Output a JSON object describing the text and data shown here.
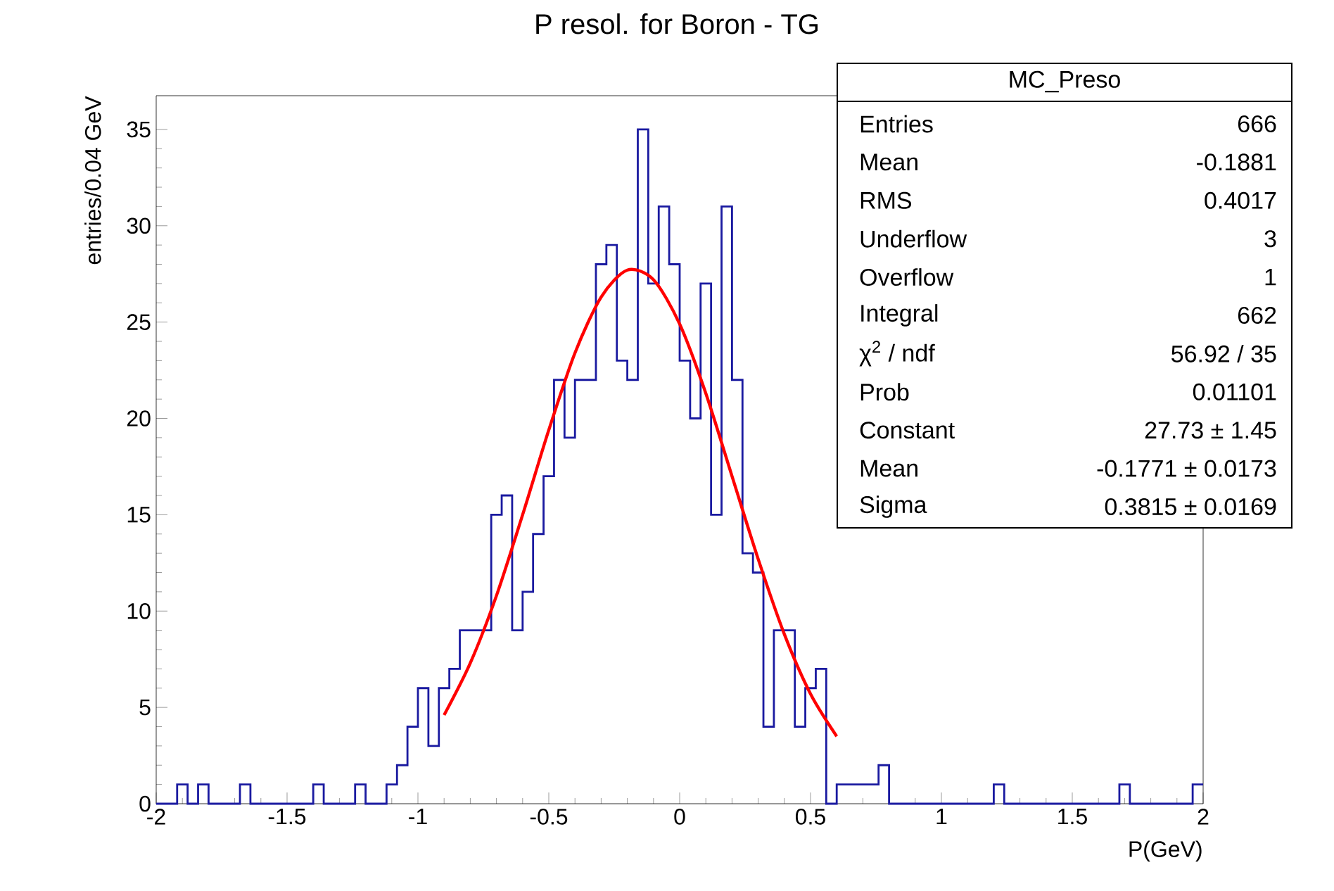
{
  "chart_data": {
    "type": "histogram",
    "title": "P resol. for Boron - TG",
    "xlabel": "P(GeV)",
    "ylabel": "entries/0.04 GeV",
    "bins": [
      -2,
      -1.96,
      -1.92,
      -1.88,
      -1.84,
      -1.8,
      -1.76,
      -1.72,
      -1.68,
      -1.64,
      -1.6,
      -1.56,
      -1.52,
      -1.48,
      -1.44,
      -1.4,
      -1.36,
      -1.32,
      -1.28,
      -1.24,
      -1.2,
      -1.16,
      -1.12,
      -1.08,
      -1.04,
      -1,
      -0.96,
      -0.92,
      -0.88,
      -0.84,
      -0.8,
      -0.76,
      -0.72,
      -0.68,
      -0.64,
      -0.6,
      -0.56,
      -0.52,
      -0.48,
      -0.44,
      -0.4,
      -0.36,
      -0.32,
      -0.28,
      -0.24,
      -0.2,
      -0.16,
      -0.12,
      -0.08,
      -0.04,
      0,
      0.04,
      0.08,
      0.12,
      0.16,
      0.2,
      0.24,
      0.28,
      0.32,
      0.36,
      0.4,
      0.44,
      0.48,
      0.52,
      0.56,
      0.6,
      0.64,
      0.68,
      0.72,
      0.76,
      0.8,
      0.84,
      0.88,
      0.92,
      0.96,
      1,
      1.04,
      1.08,
      1.12,
      1.16,
      1.2,
      1.24,
      1.28,
      1.32,
      1.36,
      1.4,
      1.44,
      1.48,
      1.52,
      1.56,
      1.6,
      1.64,
      1.68,
      1.72,
      1.76,
      1.8,
      1.84,
      1.88,
      1.92,
      1.96,
      2
    ],
    "series": [
      {
        "color": "#1a1aa0",
        "values": [
          0,
          0,
          1,
          0,
          1,
          0,
          0,
          0,
          1,
          0,
          0,
          0,
          0,
          0,
          0,
          1,
          0,
          0,
          0,
          1,
          0,
          0,
          1,
          2,
          4,
          6,
          3,
          6,
          7,
          9,
          9,
          9,
          15,
          16,
          9,
          11,
          14,
          17,
          22,
          19,
          22,
          22,
          28,
          29,
          23,
          22,
          35,
          27,
          31,
          28,
          23,
          20,
          27,
          15,
          31,
          22,
          13,
          12,
          4,
          9,
          9,
          4,
          6,
          7,
          0,
          1,
          1,
          1,
          1,
          2,
          0,
          0,
          0,
          0,
          0,
          0,
          0,
          0,
          0,
          0,
          1,
          0,
          0,
          0,
          0,
          0,
          0,
          0,
          0,
          0,
          0,
          0,
          1,
          0,
          0,
          0,
          0,
          0,
          0,
          1
        ]
      },
      {
        "type": "line",
        "color": "#ff0000",
        "x": [
          -0.9,
          -0.8,
          -0.7,
          -0.6,
          -0.5,
          -0.4,
          -0.3,
          -0.2,
          -0.1,
          0,
          0.1,
          0.2,
          0.3,
          0.4,
          0.5,
          0.6
        ],
        "values": [
          4.6,
          7.3,
          10.8,
          15.0,
          19.4,
          23.4,
          26.3,
          27.7,
          27.2,
          24.9,
          21.3,
          17.0,
          12.7,
          8.8,
          5.7,
          3.5
        ]
      }
    ],
    "xlim": [
      -2,
      2
    ],
    "ylim": [
      0,
      36.75
    ],
    "xticks": [
      -2,
      -1.5,
      -1,
      -0.5,
      0,
      0.5,
      1,
      1.5,
      2
    ],
    "yticks": [
      0,
      5,
      10,
      15,
      20,
      25,
      30,
      35
    ],
    "annotations": [
      "MC_Preso",
      "Entries",
      "666",
      "Mean",
      "-0.1881",
      "RMS",
      "0.4017",
      "Underflow",
      "3",
      "Overflow",
      "1",
      "Integral",
      "662",
      "χ$^{2}$ / ndf",
      "56.92 / 35",
      "Prob",
      "0.01101",
      "Constant",
      "27.73 ± 1.45",
      "Mean",
      "-0.1771 ± 0.0173",
      "Sigma",
      "0.3815 ± 0.0169"
    ]
  }
}
